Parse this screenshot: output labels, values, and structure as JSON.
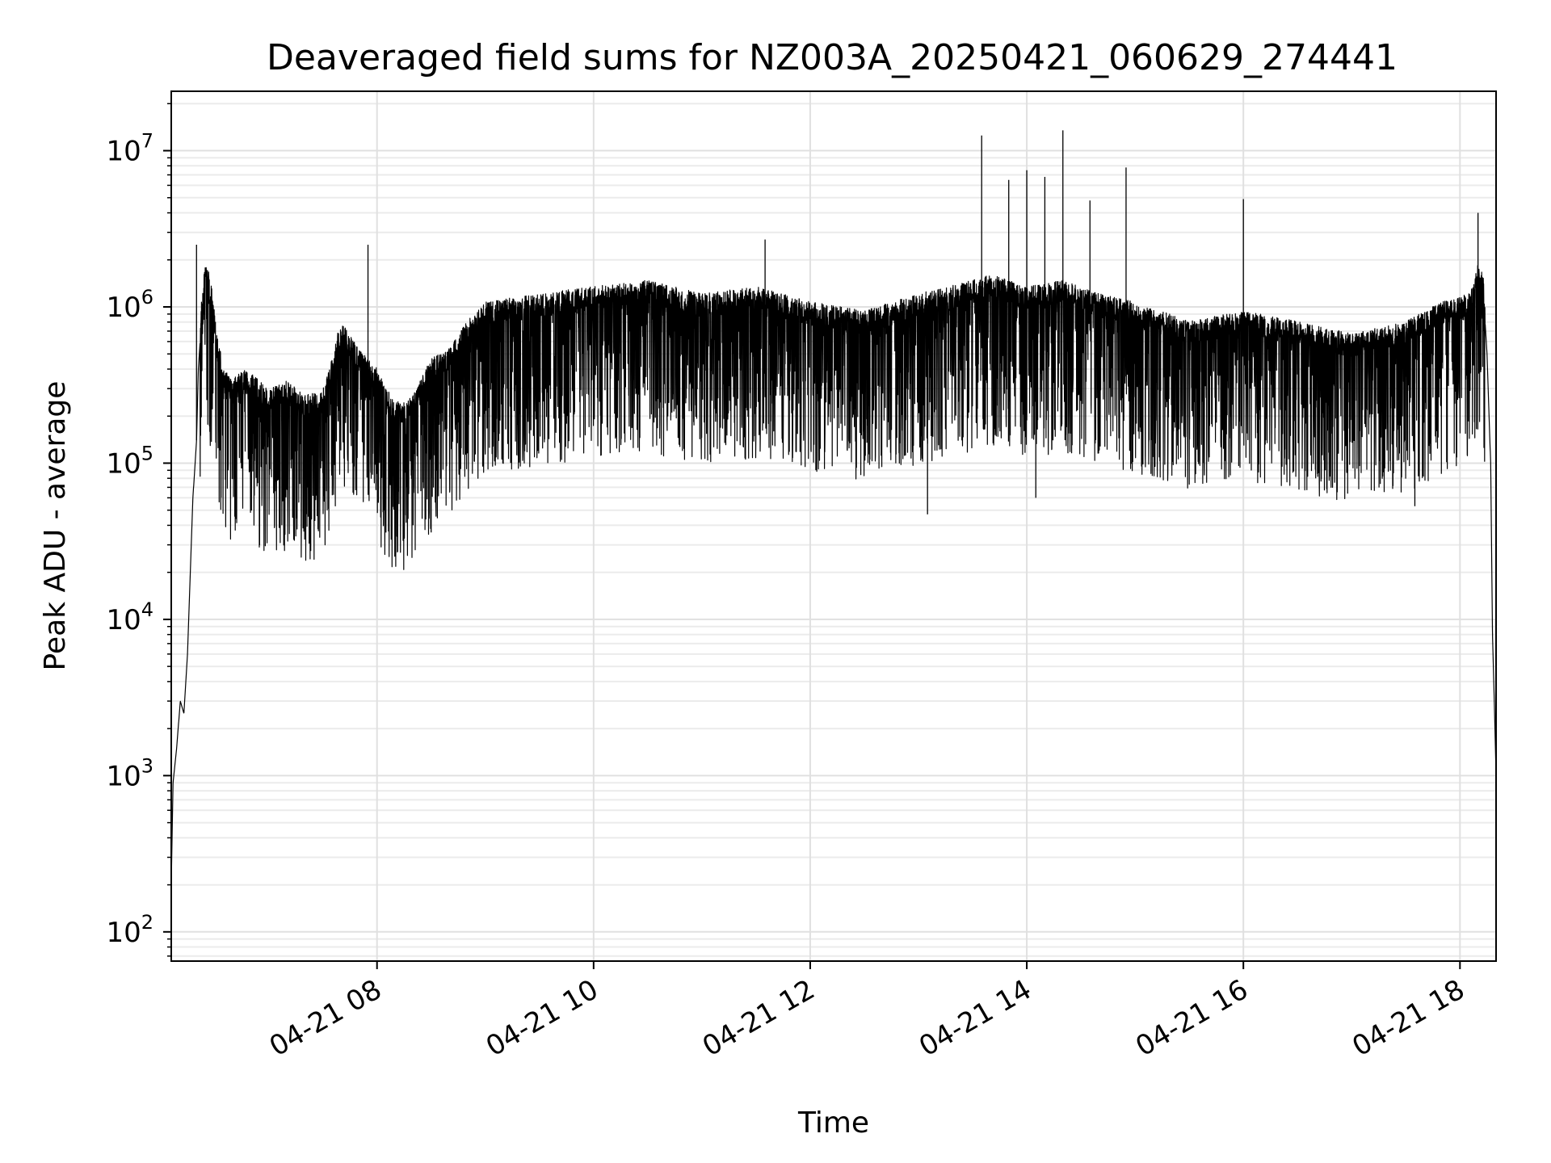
{
  "chart_data": {
    "type": "line",
    "title": "Deaveraged field sums for NZ003A_20250421_060629_274441",
    "xlabel": "Time",
    "ylabel": "Peak ADU - average",
    "yscale": "log",
    "grid": true,
    "xlim": [
      "04-21 06:06",
      "04-21 18:20"
    ],
    "ylim": [
      65,
      24000000
    ],
    "x_ticks": [
      "04-21 08",
      "04-21 10",
      "04-21 12",
      "04-21 14",
      "04-21 16",
      "04-21 18"
    ],
    "y_ticks": [
      {
        "base": "10",
        "exp": "2",
        "value": 100
      },
      {
        "base": "10",
        "exp": "3",
        "value": 1000
      },
      {
        "base": "10",
        "exp": "4",
        "value": 10000
      },
      {
        "base": "10",
        "exp": "5",
        "value": 100000
      },
      {
        "base": "10",
        "exp": "6",
        "value": 1000000
      },
      {
        "base": "10",
        "exp": "7",
        "value": 10000000
      }
    ],
    "line_color": "#000000",
    "series": [
      {
        "x": [
          "04-21 06:06",
          "04-21 06:07",
          "04-21 06:09",
          "04-21 06:11",
          "04-21 06:13",
          "04-21 06:15",
          "04-21 06:18",
          "04-21 06:20",
          "04-21 06:21",
          "04-21 06:23",
          "04-21 06:25",
          "04-21 06:27",
          "04-21 06:29",
          "04-21 06:30",
          "04-21 06:31",
          "04-21 06:33",
          "04-21 06:35",
          "04-21 06:40",
          "04-21 06:45",
          "04-21 06:50",
          "04-21 07:00",
          "04-21 07:10",
          "04-21 07:20",
          "04-21 07:30",
          "04-21 07:40",
          "04-21 07:50",
          "04-21 08:00",
          "04-21 08:10",
          "04-21 08:20",
          "04-21 08:30",
          "04-21 08:40",
          "04-21 08:50",
          "04-21 09:00",
          "04-21 09:30",
          "04-21 10:00",
          "04-21 10:30",
          "04-21 11:00",
          "04-21 11:30",
          "04-21 12:00",
          "04-21 12:30",
          "04-21 13:00",
          "04-21 13:30",
          "04-21 13:40",
          "04-21 14:00",
          "04-21 14:20",
          "04-21 14:40",
          "04-21 15:00",
          "04-21 15:30",
          "04-21 16:00",
          "04-21 16:30",
          "04-21 17:00",
          "04-21 17:30",
          "04-21 17:50",
          "04-21 18:05",
          "04-21 18:10",
          "04-21 18:13",
          "04-21 18:15",
          "04-21 18:17",
          "04-21 18:18",
          "04-21 18:19",
          "04-21 18:20"
        ],
        "y": [
          200,
          900,
          1500,
          3000,
          2500,
          6000,
          60000,
          140000,
          400000,
          900000,
          1500000,
          1200000,
          900000,
          700000,
          500000,
          400000,
          300000,
          250000,
          300000,
          280000,
          220000,
          250000,
          200000,
          220000,
          600000,
          400000,
          300000,
          180000,
          200000,
          350000,
          400000,
          600000,
          800000,
          900000,
          1000000,
          1100000,
          900000,
          1000000,
          800000,
          700000,
          900000,
          1100000,
          1200000,
          1000000,
          1100000,
          900000,
          800000,
          600000,
          700000,
          600000,
          500000,
          600000,
          800000,
          900000,
          1400000,
          1200000,
          500000,
          100000,
          8000,
          3000,
          1000
        ]
      }
    ],
    "spikes": [
      {
        "x": "04-21 13:35",
        "y": 12500000
      },
      {
        "x": "04-21 13:50",
        "y": 6500000
      },
      {
        "x": "04-21 14:00",
        "y": 7500000
      },
      {
        "x": "04-21 14:10",
        "y": 6800000
      },
      {
        "x": "04-21 14:20",
        "y": 13500000
      },
      {
        "x": "04-21 14:35",
        "y": 4800000
      },
      {
        "x": "04-21 14:55",
        "y": 7800000
      },
      {
        "x": "04-21 16:00",
        "y": 4900000
      },
      {
        "x": "04-21 18:10",
        "y": 4000000
      },
      {
        "x": "04-21 11:35",
        "y": 2700000
      },
      {
        "x": "04-21 07:55",
        "y": 2500000
      },
      {
        "x": "04-21 06:20",
        "y": 2500000
      }
    ],
    "dips": [
      {
        "x": "04-21 08:20",
        "y": 40000
      },
      {
        "x": "04-21 08:25",
        "y": 44000
      },
      {
        "x": "04-21 08:30",
        "y": 36000
      },
      {
        "x": "04-21 13:05",
        "y": 47000
      },
      {
        "x": "04-21 14:05",
        "y": 60000
      },
      {
        "x": "04-21 17:35",
        "y": 53000
      },
      {
        "x": "04-21 06:52",
        "y": 62000
      }
    ]
  }
}
